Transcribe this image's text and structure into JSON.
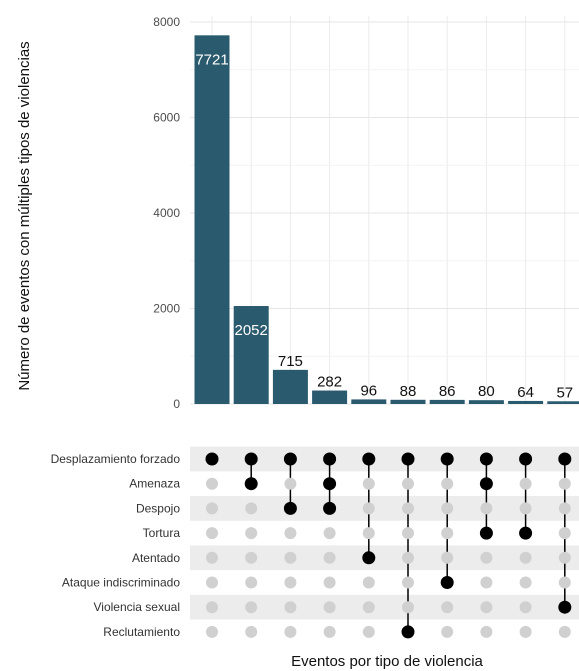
{
  "chart_data": {
    "type": "bar",
    "chart_kind": "upset",
    "ylabel": "Número de eventos con múltiples tipos de violencias",
    "xlabel": "Eventos por tipo de violencia",
    "ylim": [
      0,
      8000
    ],
    "yticks": [
      0,
      2000,
      4000,
      6000,
      8000
    ],
    "bar_color": "#2a5a6e",
    "dot_active_color": "#000000",
    "dot_inactive_color": "#d0d0d0",
    "stripe_color": "#ececec",
    "sets": [
      "Desplazamiento forzado",
      "Amenaza",
      "Despojo",
      "Tortura",
      "Atentado",
      "Ataque indiscriminado",
      "Violencia sexual",
      "Reclutamiento"
    ],
    "intersections": [
      {
        "value": 7721,
        "label": "7721",
        "members": [
          "Desplazamiento forzado"
        ]
      },
      {
        "value": 2052,
        "label": "2052",
        "members": [
          "Desplazamiento forzado",
          "Amenaza"
        ]
      },
      {
        "value": 715,
        "label": "715",
        "members": [
          "Desplazamiento forzado",
          "Despojo"
        ]
      },
      {
        "value": 282,
        "label": "282",
        "members": [
          "Desplazamiento forzado",
          "Amenaza",
          "Despojo"
        ]
      },
      {
        "value": 96,
        "label": "96",
        "members": [
          "Desplazamiento forzado",
          "Atentado"
        ]
      },
      {
        "value": 88,
        "label": "88",
        "members": [
          "Desplazamiento forzado",
          "Reclutamiento"
        ]
      },
      {
        "value": 86,
        "label": "86",
        "members": [
          "Desplazamiento forzado",
          "Ataque indiscriminado"
        ]
      },
      {
        "value": 80,
        "label": "80",
        "members": [
          "Desplazamiento forzado",
          "Amenaza",
          "Tortura"
        ]
      },
      {
        "value": 64,
        "label": "64",
        "members": [
          "Desplazamiento forzado",
          "Tortura"
        ]
      },
      {
        "value": 57,
        "label": "57",
        "members": [
          "Desplazamiento forzado",
          "Violencia sexual"
        ]
      }
    ]
  }
}
